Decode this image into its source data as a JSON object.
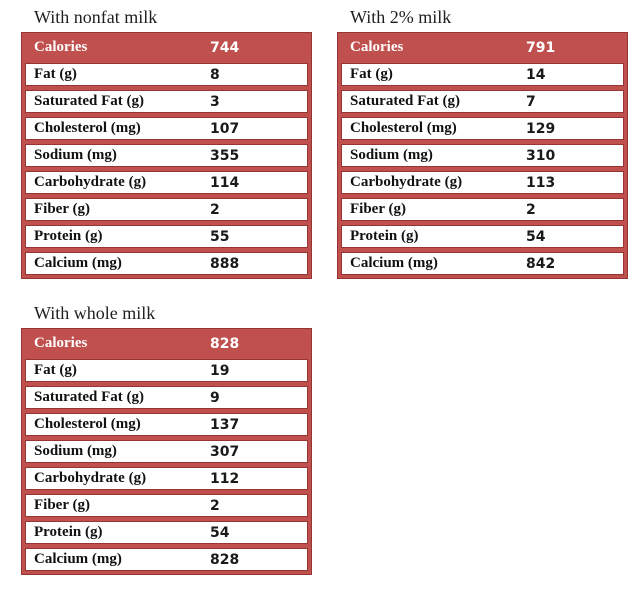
{
  "accent_color": "#c0504d",
  "border_color": "#963634",
  "chart_data": [
    {
      "type": "table",
      "title": "With nonfat milk",
      "categories": [
        "Calories",
        "Fat (g)",
        "Saturated Fat (g)",
        "Cholesterol (mg)",
        "Sodium (mg)",
        "Carbohydrate (g)",
        "Fiber (g)",
        "Protein (g)",
        "Calcium (mg)"
      ],
      "values": [
        "744",
        "8",
        "3",
        "107",
        "355",
        "114",
        "2",
        "55",
        "888"
      ]
    },
    {
      "type": "table",
      "title": "With 2% milk",
      "categories": [
        "Calories",
        "Fat (g)",
        "Saturated Fat (g)",
        "Cholesterol (mg)",
        "Sodium (mg)",
        "Carbohydrate (g)",
        "Fiber (g)",
        "Protein (g)",
        "Calcium (mg)"
      ],
      "values": [
        "791",
        "14",
        "7",
        "129",
        "310",
        "113",
        "2",
        "54",
        "842"
      ]
    },
    {
      "type": "table",
      "title": "With whole milk",
      "categories": [
        "Calories",
        "Fat (g)",
        "Saturated Fat (g)",
        "Cholesterol (mg)",
        "Sodium (mg)",
        "Carbohydrate (g)",
        "Fiber (g)",
        "Protein (g)",
        "Calcium (mg)"
      ],
      "values": [
        "828",
        "19",
        "9",
        "137",
        "307",
        "112",
        "2",
        "54",
        "828"
      ]
    }
  ]
}
